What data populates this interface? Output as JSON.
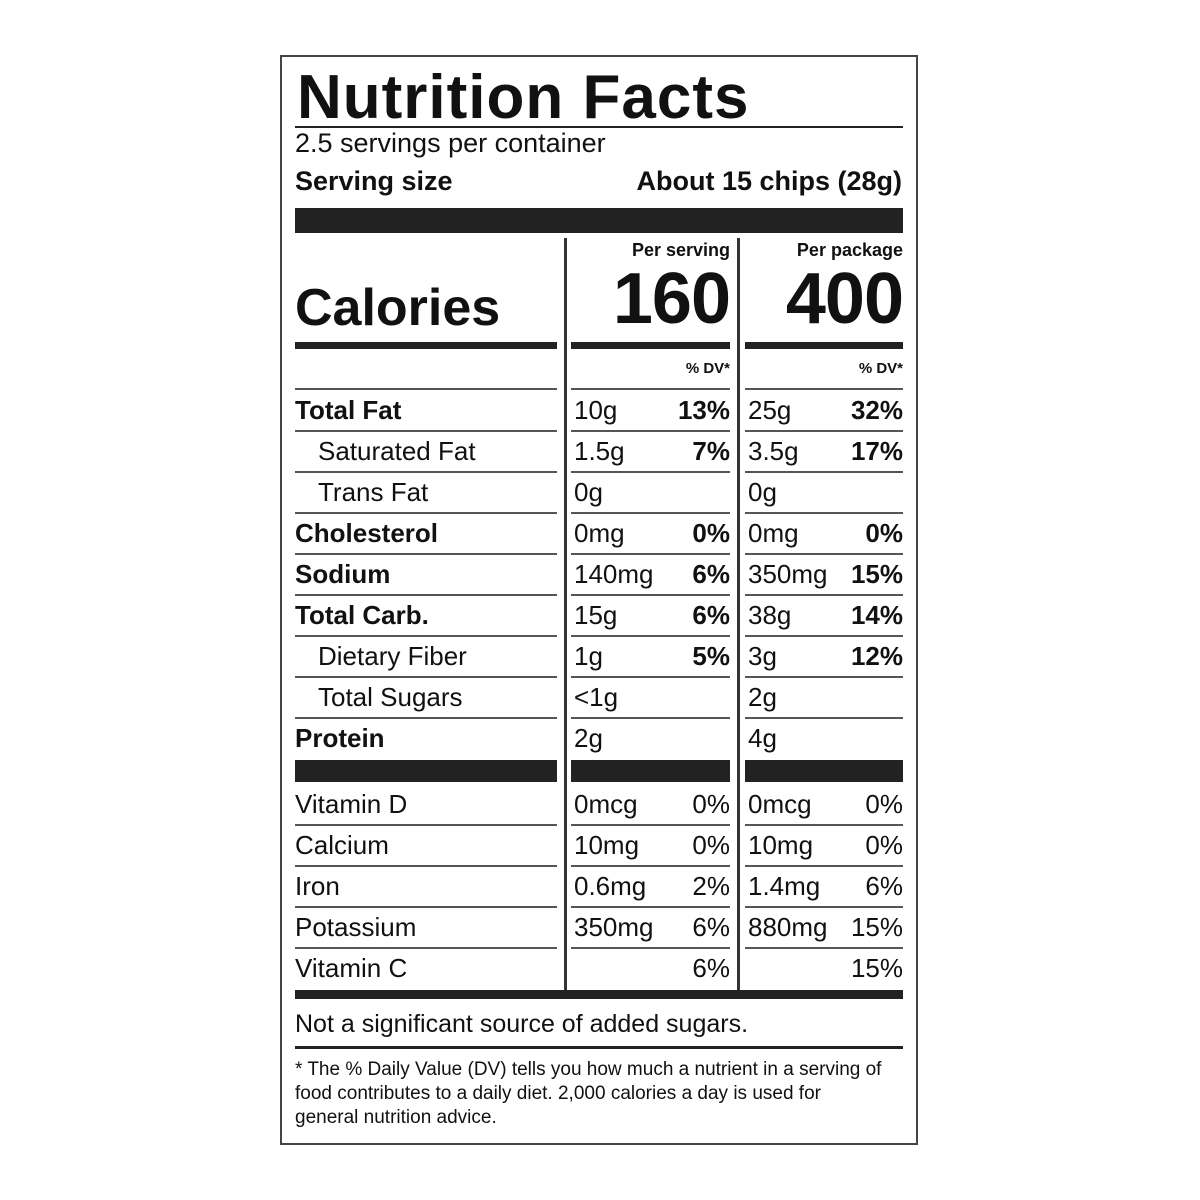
{
  "title": "Nutrition Facts",
  "servings_per_container": "2.5 servings per container",
  "serving_size_label": "Serving size",
  "serving_size_value": "About 15 chips (28g)",
  "calories_label": "Calories",
  "per_serving": {
    "header": "Per serving",
    "calories": "160",
    "dv_header": "% DV*"
  },
  "per_package": {
    "header": "Per package",
    "calories": "400",
    "dv_header": "% DV*"
  },
  "nutrients": [
    {
      "label": "Total Fat",
      "bold": true,
      "indent": false,
      "s_amt": "10g",
      "s_dv": "13%",
      "p_amt": "25g",
      "p_dv": "32%"
    },
    {
      "label": "Saturated Fat",
      "bold": false,
      "indent": true,
      "s_amt": "1.5g",
      "s_dv": "7%",
      "p_amt": "3.5g",
      "p_dv": "17%"
    },
    {
      "label": "Trans Fat",
      "bold": false,
      "indent": true,
      "s_amt": "0g",
      "s_dv": "",
      "p_amt": "0g",
      "p_dv": ""
    },
    {
      "label": "Cholesterol",
      "bold": true,
      "indent": false,
      "s_amt": "0mg",
      "s_dv": "0%",
      "p_amt": "0mg",
      "p_dv": "0%"
    },
    {
      "label": "Sodium",
      "bold": true,
      "indent": false,
      "s_amt": "140mg",
      "s_dv": "6%",
      "p_amt": "350mg",
      "p_dv": "15%"
    },
    {
      "label": "Total Carb.",
      "bold": true,
      "indent": false,
      "s_amt": "15g",
      "s_dv": "6%",
      "p_amt": "38g",
      "p_dv": "14%"
    },
    {
      "label": "Dietary Fiber",
      "bold": false,
      "indent": true,
      "s_amt": "1g",
      "s_dv": "5%",
      "p_amt": "3g",
      "p_dv": "12%"
    },
    {
      "label": "Total Sugars",
      "bold": false,
      "indent": true,
      "s_amt": "<1g",
      "s_dv": "",
      "p_amt": "2g",
      "p_dv": ""
    },
    {
      "label": "Protein",
      "bold": true,
      "indent": false,
      "s_amt": "2g",
      "s_dv": "",
      "p_amt": "4g",
      "p_dv": ""
    }
  ],
  "vitamins": [
    {
      "label": "Vitamin D",
      "s_amt": "0mcg",
      "s_dv": "0%",
      "p_amt": "0mcg",
      "p_dv": "0%"
    },
    {
      "label": "Calcium",
      "s_amt": "10mg",
      "s_dv": "0%",
      "p_amt": "10mg",
      "p_dv": "0%"
    },
    {
      "label": "Iron",
      "s_amt": "0.6mg",
      "s_dv": "2%",
      "p_amt": "1.4mg",
      "p_dv": "6%"
    },
    {
      "label": "Potassium",
      "s_amt": "350mg",
      "s_dv": "6%",
      "p_amt": "880mg",
      "p_dv": "15%"
    },
    {
      "label": "Vitamin C",
      "s_amt": "",
      "s_dv": "6%",
      "p_amt": "",
      "p_dv": "15%"
    }
  ],
  "added_sugars_note": "Not a significant source of added sugars.",
  "footnote": "* The % Daily Value (DV) tells you how much a nutrient in a serving of food contributes to a daily diet. 2,000 calories a day is used for general nutrition advice."
}
